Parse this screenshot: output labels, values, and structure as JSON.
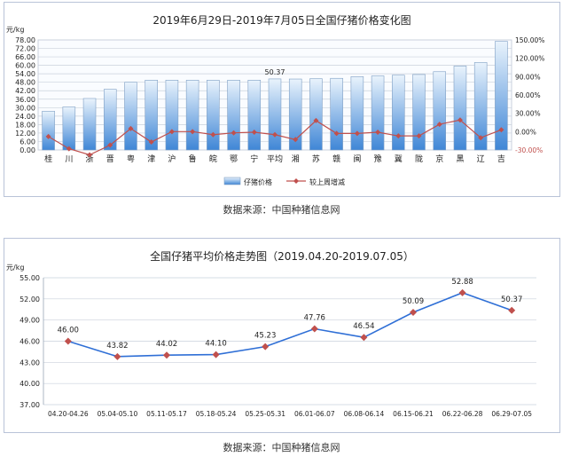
{
  "chart_data": [
    {
      "type": "bar",
      "title": "2019年6月29日-2019年7月05日全国仔猪价格变化图",
      "ylabel": "元/kg",
      "ylim": [
        0,
        78
      ],
      "yticks": [
        "0.00",
        "6.00",
        "12.00",
        "18.00",
        "24.00",
        "30.00",
        "36.00",
        "42.00",
        "48.00",
        "54.00",
        "60.00",
        "66.00",
        "72.00",
        "78.00"
      ],
      "y2lim": [
        -30,
        150
      ],
      "y2ticks": [
        "-30.00%",
        "0.00%",
        "30.00%",
        "60.00%",
        "90.00%",
        "120.00%",
        "150.00%"
      ],
      "categories": [
        "桂",
        "川",
        "浙",
        "晋",
        "粤",
        "津",
        "沪",
        "鲁",
        "皖",
        "鄂",
        "宁",
        "平均",
        "湘",
        "苏",
        "赣",
        "闽",
        "豫",
        "冀",
        "陇",
        "京",
        "黑",
        "辽",
        "吉"
      ],
      "series": [
        {
          "name": "仔猪价格",
          "kind": "bar",
          "axis": "left",
          "values": [
            27.5,
            30.5,
            36.5,
            43.0,
            48.0,
            49.5,
            49.5,
            49.5,
            49.5,
            49.5,
            49.5,
            50.37,
            50.3,
            50.5,
            50.8,
            52.0,
            52.5,
            53.0,
            53.5,
            55.5,
            59.5,
            62.0,
            77.0
          ]
        },
        {
          "name": "较上周增减",
          "kind": "line",
          "axis": "right",
          "values": [
            -8,
            -28,
            -38,
            -22,
            5,
            -17,
            0,
            0,
            -5,
            -2,
            -1,
            -5,
            -13,
            18,
            -3,
            -3,
            -1,
            -7,
            -7,
            12,
            19,
            -10,
            3
          ]
        }
      ],
      "data_labels": [
        {
          "category": "平均",
          "text": "50.37"
        }
      ],
      "legend": "bottom",
      "grid": true
    },
    {
      "type": "line",
      "title": "全国仔猪平均价格走势图（2019.04.20-2019.07.05）",
      "ylabel": "元/kg",
      "ylim": [
        37,
        55
      ],
      "yticks": [
        "37.00",
        "40.00",
        "43.00",
        "46.00",
        "49.00",
        "52.00",
        "55.00"
      ],
      "categories": [
        "04.20-04.26",
        "05.04-05.10",
        "05.11-05.17",
        "05.18-05.24",
        "05.25-05.31",
        "06.01-06.07",
        "06.08-06.14",
        "06.15-06.21",
        "06.22-06.28",
        "06.29-07.05"
      ],
      "values": [
        46.0,
        43.82,
        44.02,
        44.1,
        45.23,
        47.76,
        46.54,
        50.09,
        52.88,
        50.37
      ],
      "value_labels": [
        "46.00",
        "43.82",
        "44.02",
        "44.10",
        "45.23",
        "47.76",
        "46.54",
        "50.09",
        "52.88",
        "50.37"
      ],
      "grid": true
    }
  ],
  "source1": "数据来源：中国种猪信息网",
  "source2": "数据来源：中国种猪信息网",
  "colors": {
    "bar_light": "#e9f3fc",
    "bar_dark": "#3f86d6",
    "diff_line": "#c0504d",
    "trend_line": "#2f6fd6",
    "trend_marker": "#c0504d",
    "grid": "#c9d1dc"
  }
}
